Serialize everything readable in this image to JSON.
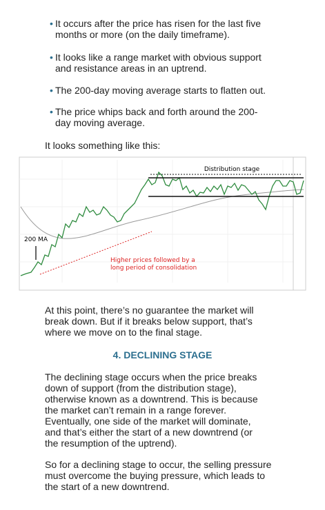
{
  "bullets": [
    [
      "It occurs after the price has risen for the last five",
      "months or more (on the daily timeframe)."
    ],
    [
      "It looks like a range market with obvious support",
      "and resistance areas in an uptrend."
    ],
    [
      "The 200-day moving average starts to flatten out."
    ],
    [
      "The price whips back and forth around the 200-",
      "day moving average."
    ]
  ],
  "bullet_symbol": "•",
  "intro": "It looks something like this:",
  "figure": {
    "distribution_label": "Distribution stage",
    "ma_label": "200 MA",
    "note": [
      "Higher prices followed by a",
      "long period of consolidation"
    ]
  },
  "paragraph_1": [
    "At this point, there’s no guarantee the market will",
    "break down. But if it breaks below support, that’s",
    "where we move on to the final stage."
  ],
  "heading": "4. DECLINING STAGE",
  "paragraph_2": [
    "The declining stage occurs when the price breaks",
    "down of support (from the distribution stage),",
    "otherwise known as a downtrend. This is because",
    "the market can’t remain in a range forever.",
    "Eventually, one side of the market will dominate,",
    "and that’s either the start of a new downtrend (or",
    "the resumption of the uptrend)."
  ],
  "paragraph_3": [
    "So for a declining stage to occur, the selling pressure",
    "must overcome the buying pressure, which leads to",
    "the start of a new downtrend."
  ]
}
